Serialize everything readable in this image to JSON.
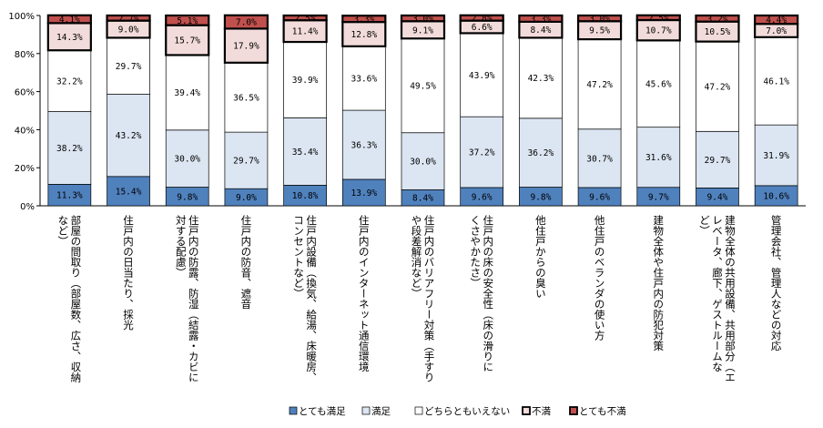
{
  "chart_data": {
    "type": "bar",
    "stacked": true,
    "categories": [
      "部屋の間取り（部屋数、広さ、収納など）",
      "住戸内の日当たり、採光",
      "住戸内の防露、防湿（結露・カビに対する配慮）",
      "住戸内の防音、遮音",
      "住戸内設備（換気、給湯、床暖房、コンセントなど）",
      "住戸内のインターネット通信環境",
      "住戸内のバリアフリー対策（手すりや段差解消など）",
      "住戸内の床の安全性（床の滑りにくさやかたさ）",
      "他住戸からの臭い",
      "他住戸のベランダの使い方",
      "建物全体や住戸内の防犯対策",
      "建物全体の共用設備、共用部分（エレベータ、廊下、ゲストルームなど）",
      "管理会社、管理人などの対応"
    ],
    "category_lines": [
      [
        "部屋の間取り（部屋数、広さ、収納",
        "など）"
      ],
      [
        "住戸内の日当たり、採光"
      ],
      [
        "住戸内の防露、防湿（結露・カビに",
        "対する配慮）"
      ],
      [
        "住戸内の防音、遮音"
      ],
      [
        "住戸内設備（換気、給湯、床暖房、",
        "コンセントなど）"
      ],
      [
        "住戸内のインターネット通信環境"
      ],
      [
        "住戸内のバリアフリー対策（手すり",
        "や段差解消など）"
      ],
      [
        "住戸内の床の安全性（床の滑りに",
        "くさやかたさ）"
      ],
      [
        "他住戸からの臭い"
      ],
      [
        "他住戸のベランダの使い方"
      ],
      [
        "建物全体や住戸内の防犯対策"
      ],
      [
        "建物全体の共用設備、共用部分（エ",
        "レベータ、廊下、ゲストルームな",
        "ど）"
      ],
      [
        "管理会社、管理人などの対応"
      ]
    ],
    "series": [
      {
        "name": "とても満足",
        "color": "#4f81bd",
        "values": [
          11.3,
          15.4,
          9.8,
          9.0,
          10.8,
          13.9,
          8.4,
          9.6,
          9.8,
          9.6,
          9.7,
          9.4,
          10.6
        ]
      },
      {
        "name": "満足",
        "color": "#dce6f2",
        "values": [
          38.2,
          43.2,
          30.0,
          29.7,
          35.4,
          36.3,
          30.0,
          37.2,
          36.2,
          30.7,
          31.6,
          29.7,
          31.9
        ]
      },
      {
        "name": "どちらともいえない",
        "color": "#ffffff",
        "values": [
          32.2,
          29.7,
          39.4,
          36.5,
          39.9,
          33.6,
          49.5,
          43.9,
          42.3,
          47.2,
          45.6,
          47.2,
          46.1
        ]
      },
      {
        "name": "不満",
        "color": "#f2dcdb",
        "values": [
          14.3,
          9.0,
          15.7,
          17.9,
          11.4,
          12.8,
          9.1,
          6.6,
          8.4,
          9.5,
          10.7,
          10.5,
          7.0
        ]
      },
      {
        "name": "とても不満",
        "color": "#c0504d",
        "values": [
          4.1,
          2.7,
          5.1,
          7.0,
          2.5,
          3.3,
          3.0,
          2.8,
          3.3,
          3.0,
          2.5,
          3.2,
          4.4
        ]
      }
    ],
    "value_labels": [
      [
        "11.3%",
        "38.2%",
        "32.2%",
        "14.3%",
        "4.1%"
      ],
      [
        "15.4%",
        "43.2%",
        "29.7%",
        "9.0%",
        "2.7%"
      ],
      [
        "9.8%",
        "30.0%",
        "39.4%",
        "15.7%",
        "5.1%"
      ],
      [
        "9.0%",
        "29.7%",
        "36.5%",
        "17.9%",
        "7.0%"
      ],
      [
        "10.8%",
        "35.4%",
        "39.9%",
        "11.4%",
        "2.5%"
      ],
      [
        "13.9%",
        "36.3%",
        "33.6%",
        "12.8%",
        "3.3%"
      ],
      [
        "8.4%",
        "30.0%",
        "49.5%",
        "9.1%",
        "3.0%"
      ],
      [
        "9.6%",
        "37.2%",
        "43.9%",
        "6.6%",
        "2.8%"
      ],
      [
        "9.8%",
        "36.2%",
        "42.3%",
        "8.4%",
        "3.3%"
      ],
      [
        "9.6%",
        "30.7%",
        "47.2%",
        "9.5%",
        "3.0%"
      ],
      [
        "9.7%",
        "31.6%",
        "45.6%",
        "10.7%",
        "2.5%"
      ],
      [
        "9.4%",
        "29.7%",
        "47.2%",
        "10.5%",
        "3.2%"
      ],
      [
        "10.6%",
        "31.9%",
        "46.1%",
        "7.0%",
        "4.4%"
      ]
    ],
    "y_ticks": [
      "0%",
      "20%",
      "40%",
      "60%",
      "80%",
      "100%"
    ],
    "ylim": [
      0,
      100
    ],
    "legend_position": "bottom",
    "grid": false
  }
}
